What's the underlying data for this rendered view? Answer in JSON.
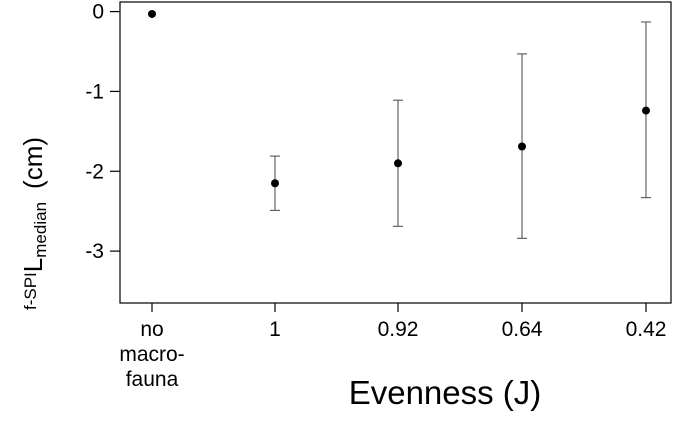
{
  "chart_data": {
    "type": "scatter",
    "title": "",
    "xlabel": "Evenness (J)",
    "ylabel": {
      "prefix": "f-SPI",
      "main": "L",
      "subscript": "median",
      "unit": "(cm)"
    },
    "categories": [
      [
        "no",
        "macro-",
        "fauna"
      ],
      [
        "1"
      ],
      [
        "0.92"
      ],
      [
        "0.64"
      ],
      [
        "0.42"
      ]
    ],
    "series": [
      {
        "values": [
          -0.03,
          -2.15,
          -1.9,
          -1.69,
          -1.24
        ],
        "error_low": [
          null,
          -2.49,
          -2.69,
          -2.84,
          -2.33
        ],
        "error_high": [
          null,
          -1.81,
          -1.11,
          -0.53,
          -0.13
        ]
      }
    ],
    "ylim": [
      -3.65,
      0.12
    ],
    "yticks": [
      0,
      -1,
      -2,
      -3
    ],
    "ytick_labels": [
      "0",
      "-1",
      "-2",
      "-3"
    ],
    "grid": false,
    "legend": "none",
    "colors": {
      "marker": "#000000",
      "axis": "#000000",
      "errorbar": "#555555"
    }
  }
}
